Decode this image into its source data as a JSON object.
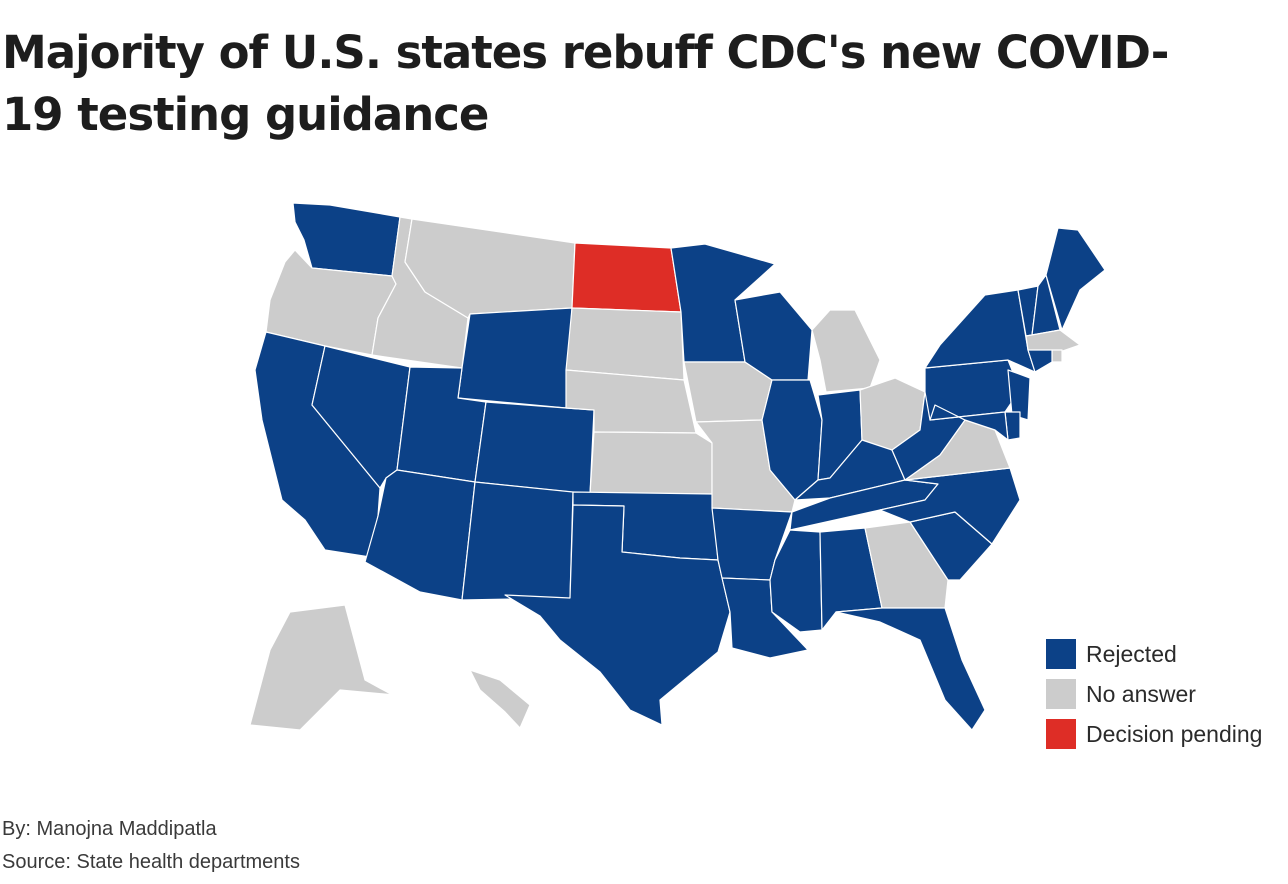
{
  "title": "Majority of U.S. states rebuff CDC's new COVID-19 testing guidance",
  "colors": {
    "rejected": "#0c4187",
    "no_answer": "#cccccc",
    "pending": "#de2d26"
  },
  "legend": [
    {
      "label": "Rejected",
      "category": "rejected"
    },
    {
      "label": "No answer",
      "category": "no_answer"
    },
    {
      "label": "Decision pending",
      "category": "pending"
    }
  ],
  "states": {
    "WA": "rejected",
    "OR": "no_answer",
    "CA": "rejected",
    "ID": "no_answer",
    "NV": "rejected",
    "MT": "no_answer",
    "WY": "rejected",
    "UT": "rejected",
    "AZ": "rejected",
    "CO": "rejected",
    "NM": "rejected",
    "ND": "pending",
    "SD": "no_answer",
    "NE": "no_answer",
    "KS": "no_answer",
    "OK": "rejected",
    "TX": "rejected",
    "MN": "rejected",
    "IA": "no_answer",
    "MO": "no_answer",
    "AR": "rejected",
    "LA": "rejected",
    "WI": "rejected",
    "IL": "rejected",
    "MI": "no_answer",
    "IN": "rejected",
    "OH": "no_answer",
    "KY": "rejected",
    "TN": "rejected",
    "MS": "rejected",
    "AL": "rejected",
    "GA": "no_answer",
    "FL": "rejected",
    "SC": "rejected",
    "NC": "rejected",
    "VA": "no_answer",
    "WV": "rejected",
    "PA": "rejected",
    "NY": "rejected",
    "VT": "rejected",
    "NH": "rejected",
    "ME": "rejected",
    "MA": "no_answer",
    "RI": "no_answer",
    "CT": "rejected",
    "NJ": "rejected",
    "DE": "rejected",
    "MD": "rejected",
    "AK": "no_answer",
    "HI": "no_answer"
  },
  "byline": "By: Manojna Maddipatla",
  "source": "Source: State health departments"
}
